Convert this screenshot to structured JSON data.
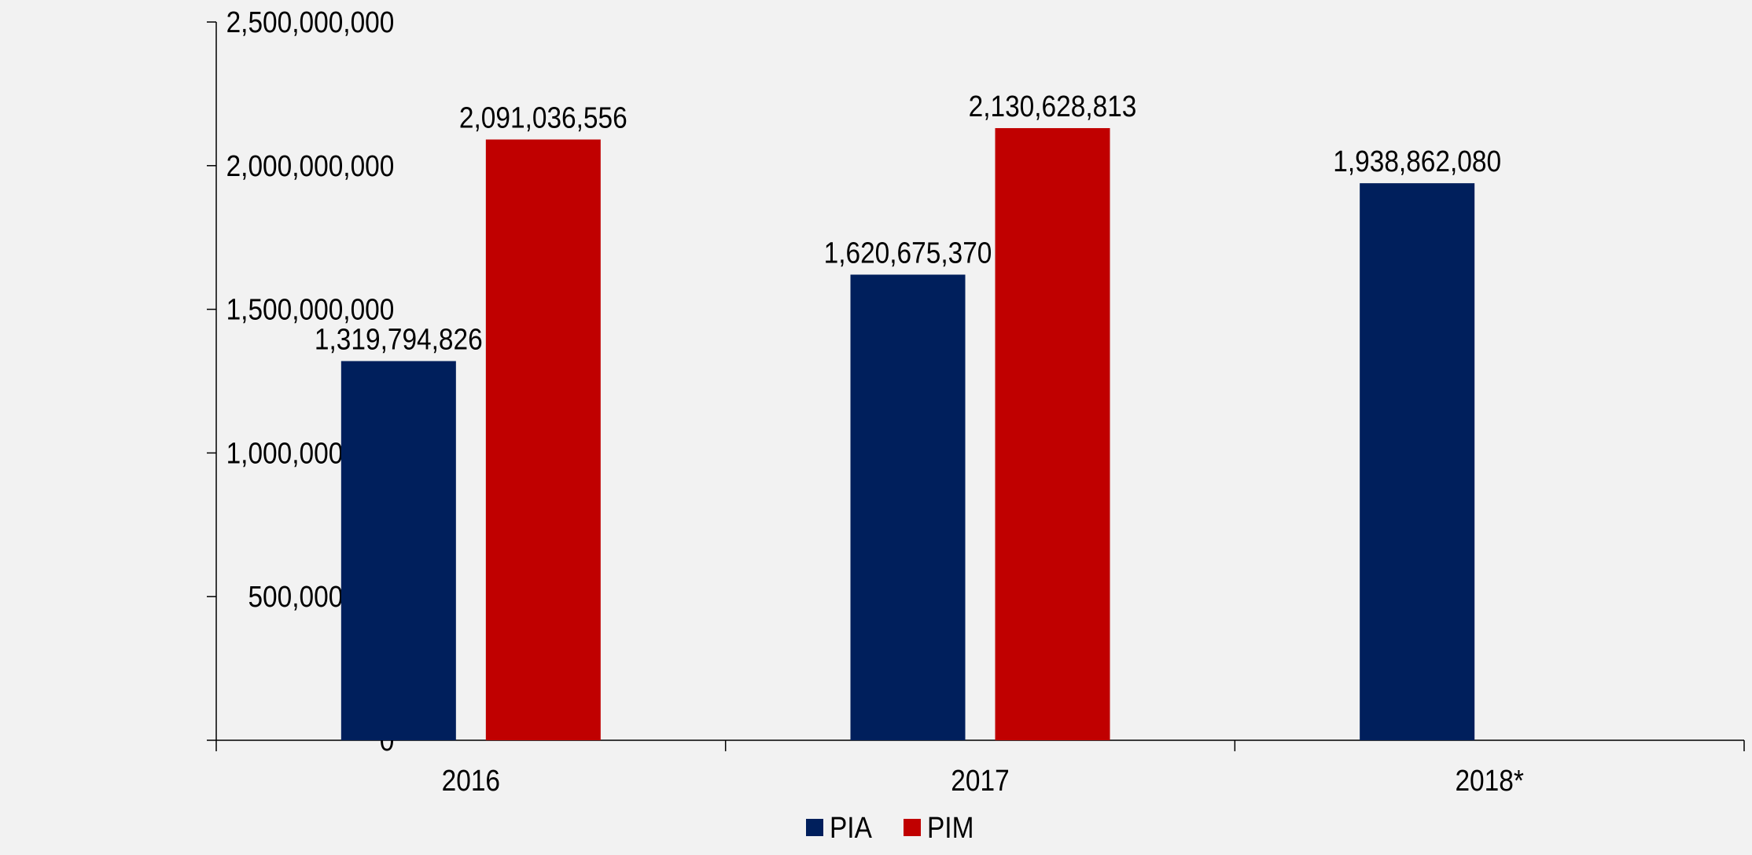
{
  "chart_data": {
    "type": "bar",
    "title": "",
    "xlabel": "",
    "ylabel": "",
    "categories": [
      "2016",
      "2017",
      "2018*"
    ],
    "series": [
      {
        "name": "PIA",
        "color": "#001f5c",
        "values": [
          1319794826,
          1620675370,
          1938862080
        ],
        "labels": [
          "1,319,794,826",
          "1,620,675,370",
          "1,938,862,080"
        ]
      },
      {
        "name": "PIM",
        "color": "#c00000",
        "values": [
          2091036556,
          2130628813,
          null
        ],
        "labels": [
          "2,091,036,556",
          "2,130,628,813",
          ""
        ]
      }
    ],
    "ylim": [
      0,
      2500000000
    ],
    "yticks": [
      0,
      500000000,
      1000000000,
      1500000000,
      2000000000,
      2500000000
    ],
    "ytick_labels": [
      "0",
      "500,000,000",
      "1,000,000,000",
      "1,500,000,000",
      "2,000,000,000",
      "2,500,000,000"
    ],
    "grid": false,
    "legend": "bottom-center"
  }
}
